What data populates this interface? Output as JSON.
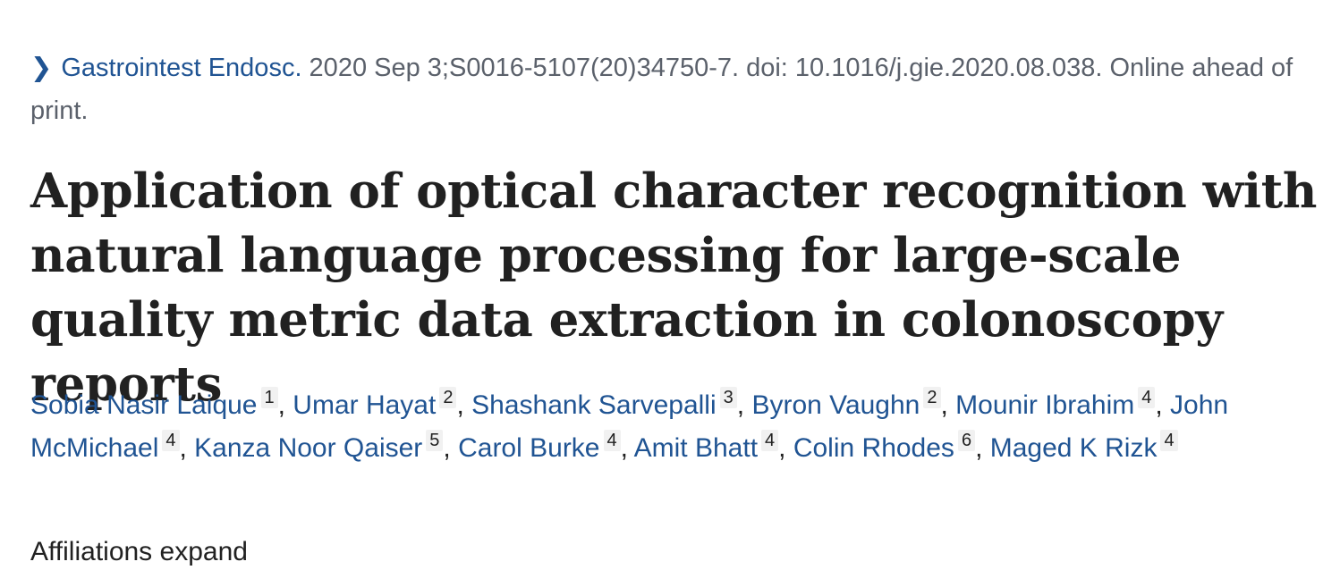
{
  "citation": {
    "journal": "Gastrointest Endosc.",
    "details": " 2020 Sep 3;S0016-5107(20)34750-7. doi: 10.1016/j.gie.2020.08.038. Online ahead of print."
  },
  "title": "Application of optical character recognition with natural language processing for large-scale quality metric data extraction in colonoscopy reports",
  "authors": [
    {
      "name": "Sobia Nasir Laique",
      "aff": "1"
    },
    {
      "name": "Umar Hayat",
      "aff": "2"
    },
    {
      "name": "Shashank Sarvepalli",
      "aff": "3"
    },
    {
      "name": "Byron Vaughn",
      "aff": "2"
    },
    {
      "name": "Mounir Ibrahim",
      "aff": "4"
    },
    {
      "name": "John McMichael",
      "aff": "4"
    },
    {
      "name": "Kanza Noor Qaiser",
      "aff": "5"
    },
    {
      "name": "Carol Burke",
      "aff": "4"
    },
    {
      "name": "Amit Bhatt",
      "aff": "4"
    },
    {
      "name": "Colin Rhodes",
      "aff": "6"
    },
    {
      "name": "Maged K Rizk",
      "aff": "4"
    }
  ],
  "affiliations_toggle": "Affiliations expand"
}
